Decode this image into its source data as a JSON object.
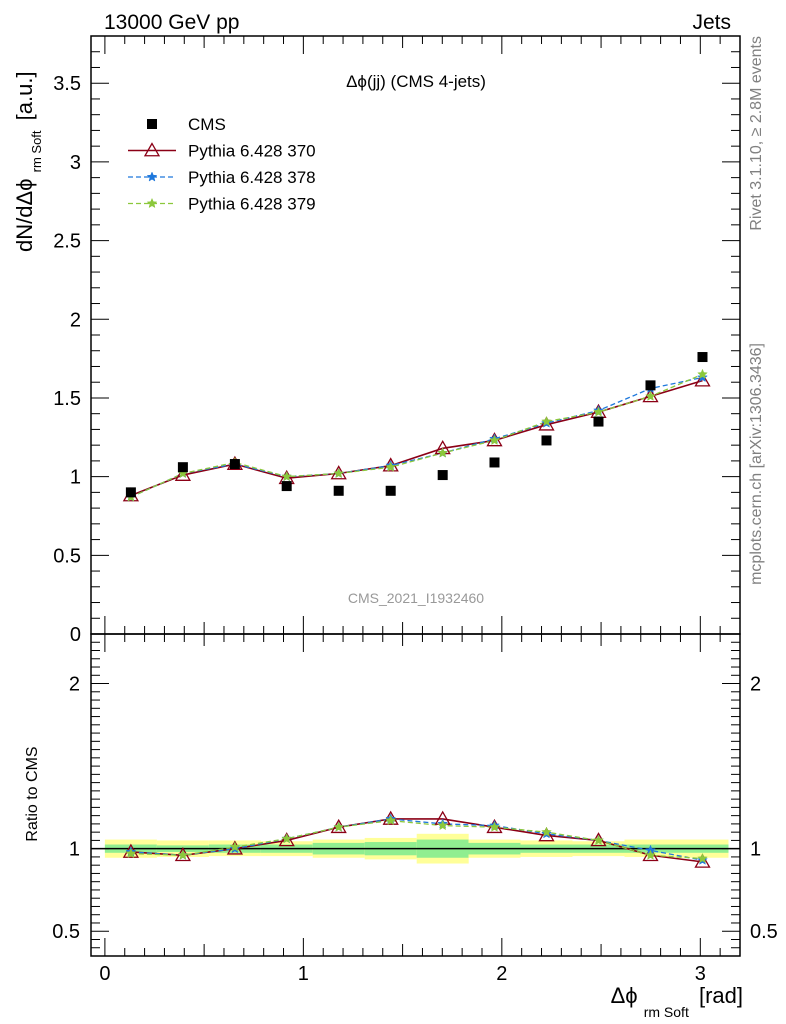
{
  "header": {
    "left": "13000 GeV pp",
    "right": "Jets"
  },
  "side_text": {
    "rivet": "Rivet 3.1.10, ≥ 2.8M events",
    "mcplots": "mcplots.cern.ch [arXiv:1306.3436]"
  },
  "colors": {
    "cms": "#000000",
    "pythia370": "#8b0016",
    "pythia378": "#1e78dc",
    "pythia379": "#8cc83c",
    "band_inner": "#90ee90",
    "band_outer": "#ffff99"
  },
  "chart_data": [
    {
      "type": "scatter",
      "title": "Δϕ(jj) (CMS 4-jets)",
      "analysis_label": "CMS_2021_I1932460",
      "xlabel": "Δϕ",
      "xlabel_sub": "rm Soft",
      "xlabel_unit": "[rad]",
      "ylabel": "dN/dΔϕ",
      "ylabel_sub": "rm Soft",
      "ylabel_unit": "[a.u.]",
      "xlim": [
        -0.07,
        3.2
      ],
      "ylim": [
        0,
        3.8
      ],
      "yticks": [
        {
          "value": 0,
          "label": "0"
        },
        {
          "value": 0.5,
          "label": "0.5"
        },
        {
          "value": 1,
          "label": "1"
        },
        {
          "value": 1.5,
          "label": "1.5"
        },
        {
          "value": 2,
          "label": "2"
        },
        {
          "value": 2.5,
          "label": "2.5"
        },
        {
          "value": 3,
          "label": "3"
        },
        {
          "value": 3.5,
          "label": "3.5"
        }
      ],
      "legend_position": "top-left",
      "x": [
        0.131,
        0.393,
        0.655,
        0.916,
        1.178,
        1.44,
        1.702,
        1.963,
        2.225,
        2.487,
        2.749,
        3.011
      ],
      "series": [
        {
          "name": "CMS",
          "marker": "square",
          "values": [
            0.9,
            1.06,
            1.08,
            0.94,
            0.91,
            0.91,
            1.01,
            1.09,
            1.23,
            1.35,
            1.58,
            1.76
          ]
        },
        {
          "name": "Pythia 6.428 370",
          "marker": "triangle",
          "line": "solid",
          "values": [
            0.88,
            1.01,
            1.08,
            0.99,
            1.02,
            1.07,
            1.18,
            1.23,
            1.33,
            1.41,
            1.51,
            1.61
          ]
        },
        {
          "name": "Pythia 6.428 378",
          "marker": "star",
          "line": "dashed",
          "values": [
            0.87,
            1.02,
            1.08,
            1.0,
            1.02,
            1.07,
            1.15,
            1.24,
            1.34,
            1.42,
            1.56,
            1.63
          ]
        },
        {
          "name": "Pythia 6.428 379",
          "marker": "star",
          "line": "dashed",
          "values": [
            0.87,
            1.02,
            1.09,
            1.0,
            1.02,
            1.06,
            1.15,
            1.23,
            1.35,
            1.41,
            1.51,
            1.65
          ]
        }
      ]
    },
    {
      "type": "scatter",
      "ylabel": "Ratio to CMS",
      "xlabel": "Δϕ",
      "xlim": [
        -0.07,
        3.2
      ],
      "ylim": [
        0.35,
        2.3
      ],
      "xticks": [
        {
          "value": 0,
          "label": "0"
        },
        {
          "value": 1,
          "label": "1"
        },
        {
          "value": 2,
          "label": "2"
        },
        {
          "value": 3,
          "label": "3"
        }
      ],
      "yticks": [
        {
          "value": 0.5,
          "label": "0.5"
        },
        {
          "value": 1,
          "label": "1"
        },
        {
          "value": 2,
          "label": "2"
        }
      ],
      "reference_line": 1,
      "x": [
        0.131,
        0.393,
        0.655,
        0.916,
        1.178,
        1.44,
        1.702,
        1.963,
        2.225,
        2.487,
        2.749,
        3.011
      ],
      "bands": {
        "inner_low": [
          0.975,
          0.98,
          0.975,
          0.975,
          0.965,
          0.96,
          0.945,
          0.965,
          0.975,
          0.975,
          0.975,
          0.975
        ],
        "inner_high": [
          1.025,
          1.02,
          1.025,
          1.025,
          1.035,
          1.04,
          1.055,
          1.035,
          1.025,
          1.025,
          1.025,
          1.025
        ],
        "outer_low": [
          0.945,
          0.95,
          0.955,
          0.955,
          0.945,
          0.935,
          0.91,
          0.945,
          0.95,
          0.955,
          0.95,
          0.945
        ],
        "outer_high": [
          1.055,
          1.05,
          1.05,
          1.045,
          1.055,
          1.065,
          1.09,
          1.055,
          1.05,
          1.045,
          1.055,
          1.055
        ]
      },
      "series": [
        {
          "name": "Pythia 6.428 370",
          "values": [
            0.98,
            0.96,
            1.0,
            1.05,
            1.13,
            1.18,
            1.18,
            1.13,
            1.08,
            1.05,
            0.96,
            0.92
          ]
        },
        {
          "name": "Pythia 6.428 378",
          "values": [
            0.98,
            0.96,
            1.0,
            1.06,
            1.13,
            1.18,
            1.15,
            1.14,
            1.09,
            1.05,
            0.99,
            0.93
          ]
        },
        {
          "name": "Pythia 6.428 379",
          "values": [
            0.97,
            0.96,
            1.01,
            1.06,
            1.13,
            1.17,
            1.14,
            1.13,
            1.1,
            1.05,
            0.96,
            0.94
          ]
        }
      ]
    }
  ]
}
